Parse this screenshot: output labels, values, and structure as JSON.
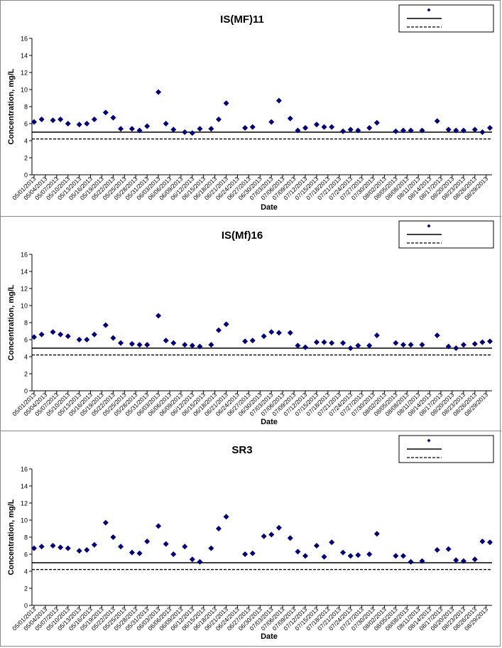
{
  "chart_data": [
    {
      "type": "scatter",
      "title": "IS(MF)11",
      "xlabel": "Date",
      "ylabel": "Concentration, mg/L",
      "ylim": [
        0,
        16
      ],
      "yticks": [
        0,
        2,
        4,
        6,
        8,
        10,
        12,
        14,
        16
      ],
      "xlim": [
        "05/01/2013",
        "08/30/2013"
      ],
      "xticks": [
        "05/01/2013",
        "05/04/2013",
        "05/07/2013",
        "05/10/2013",
        "05/13/2013",
        "05/16/2013",
        "05/19/2013",
        "05/22/2013",
        "05/25/2013",
        "05/28/2013",
        "05/31/2013",
        "06/03/2013",
        "06/06/2013",
        "06/09/2013",
        "06/12/2013",
        "06/15/2013",
        "06/18/2013",
        "06/21/2013",
        "06/24/2013",
        "06/27/2013",
        "06/30/2013",
        "07/03/2013",
        "07/06/2013",
        "07/09/2013",
        "07/12/2013",
        "07/15/2013",
        "07/18/2013",
        "07/21/2013",
        "07/24/2013",
        "07/27/2013",
        "07/30/2013",
        "08/02/2013",
        "08/05/2013",
        "08/08/2013",
        "08/11/2013",
        "08/14/2013",
        "08/17/2013",
        "08/20/2013",
        "08/23/2013",
        "08/26/2013",
        "08/29/2013"
      ],
      "series": [
        {
          "kind": "points",
          "color": "#00007f",
          "data": [
            [
              "05/01/2013",
              6.2
            ],
            [
              "05/03/2013",
              6.5
            ],
            [
              "05/06/2013",
              6.4
            ],
            [
              "05/08/2013",
              6.5
            ],
            [
              "05/10/2013",
              6.0
            ],
            [
              "05/13/2013",
              5.9
            ],
            [
              "05/15/2013",
              6.0
            ],
            [
              "05/17/2013",
              6.5
            ],
            [
              "05/20/2013",
              7.3
            ],
            [
              "05/22/2013",
              6.7
            ],
            [
              "05/24/2013",
              5.4
            ],
            [
              "05/27/2013",
              5.4
            ],
            [
              "05/29/2013",
              5.2
            ],
            [
              "05/31/2013",
              5.7
            ],
            [
              "06/03/2013",
              9.7
            ],
            [
              "06/05/2013",
              6.0
            ],
            [
              "06/07/2013",
              5.3
            ],
            [
              "06/10/2013",
              5.0
            ],
            [
              "06/12/2013",
              4.9
            ],
            [
              "06/14/2013",
              5.4
            ],
            [
              "06/17/2013",
              5.4
            ],
            [
              "06/19/2013",
              6.5
            ],
            [
              "06/21/2013",
              8.4
            ],
            [
              "06/26/2013",
              5.5
            ],
            [
              "06/28/2013",
              5.6
            ],
            [
              "07/03/2013",
              6.2
            ],
            [
              "07/05/2013",
              8.7
            ],
            [
              "07/08/2013",
              6.6
            ],
            [
              "07/10/2013",
              5.2
            ],
            [
              "07/12/2013",
              5.5
            ],
            [
              "07/15/2013",
              5.9
            ],
            [
              "07/17/2013",
              5.6
            ],
            [
              "07/19/2013",
              5.6
            ],
            [
              "07/22/2013",
              5.1
            ],
            [
              "07/24/2013",
              5.3
            ],
            [
              "07/26/2013",
              5.2
            ],
            [
              "07/29/2013",
              5.5
            ],
            [
              "07/31/2013",
              6.1
            ],
            [
              "08/05/2013",
              5.1
            ],
            [
              "08/07/2013",
              5.2
            ],
            [
              "08/09/2013",
              5.2
            ],
            [
              "08/12/2013",
              5.2
            ],
            [
              "08/16/2013",
              6.3
            ],
            [
              "08/19/2013",
              5.3
            ],
            [
              "08/21/2013",
              5.2
            ],
            [
              "08/23/2013",
              5.2
            ],
            [
              "08/26/2013",
              5.3
            ],
            [
              "08/28/2013",
              5.0
            ],
            [
              "08/30/2013",
              5.5
            ]
          ]
        },
        {
          "kind": "solid-line",
          "color": "#000000",
          "y": 5.0
        },
        {
          "kind": "dashed-line",
          "color": "#000000",
          "y": 4.2
        }
      ],
      "legend": {
        "position": "top-right"
      }
    },
    {
      "type": "scatter",
      "title": "IS(Mf)16",
      "xlabel": "Date",
      "ylabel": "Concentration, mg/L",
      "ylim": [
        0,
        16
      ],
      "yticks": [
        0,
        2,
        4,
        6,
        8,
        10,
        12,
        14,
        16
      ],
      "xlim": [
        "05/01/2013",
        "08/30/2013"
      ],
      "xticks": [
        "05/01/2013",
        "05/04/2013",
        "05/07/2013",
        "05/10/2013",
        "05/13/2013",
        "05/16/2013",
        "05/19/2013",
        "05/22/2013",
        "05/25/2013",
        "05/28/2013",
        "05/31/2013",
        "06/03/2013",
        "06/06/2013",
        "06/09/2013",
        "06/12/2013",
        "06/15/2013",
        "06/18/2013",
        "06/21/2013",
        "06/24/2013",
        "06/27/2013",
        "06/30/2013",
        "07/03/2013",
        "07/06/2013",
        "07/09/2013",
        "07/12/2013",
        "07/15/2013",
        "07/18/2013",
        "07/21/2013",
        "07/24/2013",
        "07/27/2013",
        "07/30/2013",
        "08/02/2013",
        "08/05/2013",
        "08/08/2013",
        "08/11/2013",
        "08/14/2013",
        "08/17/2013",
        "08/20/2013",
        "08/23/2013",
        "08/26/2013",
        "08/29/2013"
      ],
      "series": [
        {
          "kind": "points",
          "color": "#00007f",
          "data": [
            [
              "05/01/2013",
              6.3
            ],
            [
              "05/03/2013",
              6.6
            ],
            [
              "05/06/2013",
              6.9
            ],
            [
              "05/08/2013",
              6.6
            ],
            [
              "05/10/2013",
              6.4
            ],
            [
              "05/13/2013",
              6.0
            ],
            [
              "05/15/2013",
              6.0
            ],
            [
              "05/17/2013",
              6.6
            ],
            [
              "05/20/2013",
              7.7
            ],
            [
              "05/22/2013",
              6.2
            ],
            [
              "05/24/2013",
              5.6
            ],
            [
              "05/27/2013",
              5.5
            ],
            [
              "05/29/2013",
              5.4
            ],
            [
              "05/31/2013",
              5.4
            ],
            [
              "06/03/2013",
              8.8
            ],
            [
              "06/05/2013",
              5.9
            ],
            [
              "06/07/2013",
              5.6
            ],
            [
              "06/10/2013",
              5.4
            ],
            [
              "06/12/2013",
              5.3
            ],
            [
              "06/14/2013",
              5.2
            ],
            [
              "06/17/2013",
              5.4
            ],
            [
              "06/19/2013",
              7.1
            ],
            [
              "06/21/2013",
              7.8
            ],
            [
              "06/26/2013",
              5.8
            ],
            [
              "06/28/2013",
              5.9
            ],
            [
              "07/01/2013",
              6.4
            ],
            [
              "07/03/2013",
              6.9
            ],
            [
              "07/05/2013",
              6.8
            ],
            [
              "07/08/2013",
              6.8
            ],
            [
              "07/10/2013",
              5.3
            ],
            [
              "07/12/2013",
              5.1
            ],
            [
              "07/15/2013",
              5.7
            ],
            [
              "07/17/2013",
              5.7
            ],
            [
              "07/19/2013",
              5.6
            ],
            [
              "07/22/2013",
              5.6
            ],
            [
              "07/24/2013",
              5.0
            ],
            [
              "07/26/2013",
              5.3
            ],
            [
              "07/29/2013",
              5.3
            ],
            [
              "07/31/2013",
              6.5
            ],
            [
              "08/05/2013",
              5.6
            ],
            [
              "08/07/2013",
              5.4
            ],
            [
              "08/09/2013",
              5.4
            ],
            [
              "08/12/2013",
              5.4
            ],
            [
              "08/16/2013",
              6.5
            ],
            [
              "08/19/2013",
              5.2
            ],
            [
              "08/21/2013",
              5.0
            ],
            [
              "08/23/2013",
              5.4
            ],
            [
              "08/26/2013",
              5.5
            ],
            [
              "08/28/2013",
              5.7
            ],
            [
              "08/30/2013",
              5.8
            ]
          ]
        },
        {
          "kind": "solid-line",
          "color": "#000000",
          "y": 5.0
        },
        {
          "kind": "dashed-line",
          "color": "#000000",
          "y": 4.2
        }
      ],
      "legend": {
        "position": "top-right"
      }
    },
    {
      "type": "scatter",
      "title": "SR3",
      "xlabel": "Date",
      "ylabel": "Concentration, mg/L",
      "ylim": [
        0,
        16
      ],
      "yticks": [
        0,
        2,
        4,
        6,
        8,
        10,
        12,
        14,
        16
      ],
      "xlim": [
        "05/01/2013",
        "08/30/2013"
      ],
      "xticks": [
        "05/01/2013",
        "05/04/2013",
        "05/07/2013",
        "05/10/2013",
        "05/13/2013",
        "05/16/2013",
        "05/19/2013",
        "05/22/2013",
        "05/25/2013",
        "05/28/2013",
        "05/31/2013",
        "06/03/2013",
        "06/06/2013",
        "06/09/2013",
        "06/12/2013",
        "06/15/2013",
        "06/18/2013",
        "06/21/2013",
        "06/24/2013",
        "06/27/2013",
        "06/30/2013",
        "07/03/2013",
        "07/06/2013",
        "07/09/2013",
        "07/12/2013",
        "07/15/2013",
        "07/18/2013",
        "07/21/2013",
        "07/24/2013",
        "07/27/2013",
        "07/30/2013",
        "08/02/2013",
        "08/05/2013",
        "08/08/2013",
        "08/11/2013",
        "08/14/2013",
        "08/17/2013",
        "08/20/2013",
        "08/23/2013",
        "08/26/2013",
        "08/29/2013"
      ],
      "series": [
        {
          "kind": "points",
          "color": "#00007f",
          "data": [
            [
              "05/01/2013",
              6.7
            ],
            [
              "05/03/2013",
              6.9
            ],
            [
              "05/06/2013",
              7.0
            ],
            [
              "05/08/2013",
              6.8
            ],
            [
              "05/10/2013",
              6.7
            ],
            [
              "05/13/2013",
              6.4
            ],
            [
              "05/15/2013",
              6.5
            ],
            [
              "05/17/2013",
              7.1
            ],
            [
              "05/20/2013",
              9.7
            ],
            [
              "05/22/2013",
              8.0
            ],
            [
              "05/24/2013",
              6.9
            ],
            [
              "05/27/2013",
              6.2
            ],
            [
              "05/29/2013",
              6.1
            ],
            [
              "05/31/2013",
              7.5
            ],
            [
              "06/03/2013",
              9.3
            ],
            [
              "06/05/2013",
              7.2
            ],
            [
              "06/07/2013",
              6.0
            ],
            [
              "06/10/2013",
              6.9
            ],
            [
              "06/12/2013",
              5.4
            ],
            [
              "06/14/2013",
              5.1
            ],
            [
              "06/17/2013",
              6.7
            ],
            [
              "06/19/2013",
              9.0
            ],
            [
              "06/21/2013",
              10.4
            ],
            [
              "06/26/2013",
              6.0
            ],
            [
              "06/28/2013",
              6.1
            ],
            [
              "07/01/2013",
              8.1
            ],
            [
              "07/03/2013",
              8.3
            ],
            [
              "07/05/2013",
              9.1
            ],
            [
              "07/08/2013",
              7.9
            ],
            [
              "07/10/2013",
              6.3
            ],
            [
              "07/12/2013",
              5.8
            ],
            [
              "07/15/2013",
              7.0
            ],
            [
              "07/17/2013",
              5.7
            ],
            [
              "07/19/2013",
              7.4
            ],
            [
              "07/22/2013",
              6.2
            ],
            [
              "07/24/2013",
              5.8
            ],
            [
              "07/26/2013",
              5.9
            ],
            [
              "07/29/2013",
              6.0
            ],
            [
              "07/31/2013",
              8.4
            ],
            [
              "08/05/2013",
              5.8
            ],
            [
              "08/07/2013",
              5.8
            ],
            [
              "08/09/2013",
              5.1
            ],
            [
              "08/12/2013",
              5.2
            ],
            [
              "08/16/2013",
              6.5
            ],
            [
              "08/19/2013",
              6.6
            ],
            [
              "08/21/2013",
              5.3
            ],
            [
              "08/23/2013",
              5.2
            ],
            [
              "08/26/2013",
              5.4
            ],
            [
              "08/28/2013",
              7.5
            ],
            [
              "08/30/2013",
              7.4
            ]
          ]
        },
        {
          "kind": "solid-line",
          "color": "#000000",
          "y": 5.0
        },
        {
          "kind": "dashed-line",
          "color": "#000000",
          "y": 4.2
        }
      ],
      "legend": {
        "position": "top-right"
      }
    }
  ]
}
